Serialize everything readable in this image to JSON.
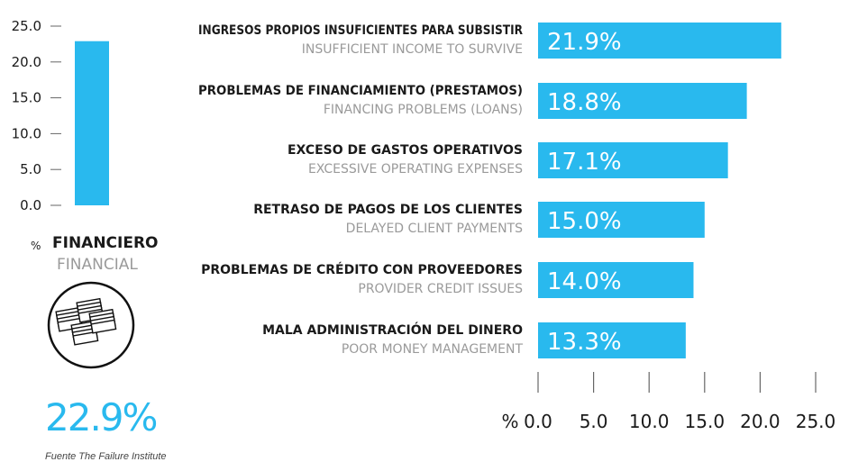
{
  "colors": {
    "bar": "#29b9ee",
    "text": "#1a1a1a",
    "subtext": "#9a9a9a"
  },
  "left_panel": {
    "percent_symbol": "%",
    "category_es": "FINANCIERO",
    "category_en": "FINANCIAL",
    "icon": "money-stack-icon",
    "big_value": "22.9%"
  },
  "source": "Fuente The Failure Institute",
  "chart_data": [
    {
      "type": "bar",
      "orientation": "vertical",
      "categories": [
        "FINANCIERO"
      ],
      "values": [
        22.9
      ],
      "ylim": [
        0,
        25
      ],
      "yticks": [
        "0.0",
        "5.0",
        "10.0",
        "15.0",
        "20.0",
        "25.0"
      ]
    },
    {
      "type": "bar",
      "orientation": "horizontal",
      "categories": [
        {
          "es": "INGRESOS PROPIOS INSUFICIENTES PARA SUBSISTIR",
          "en": "INSUFFICIENT INCOME TO SURVIVE"
        },
        {
          "es": "PROBLEMAS DE FINANCIAMIENTO (PRESTAMOS)",
          "en": "FINANCING PROBLEMS (LOANS)"
        },
        {
          "es": "EXCESO DE GASTOS OPERATIVOS",
          "en": "EXCESSIVE OPERATING EXPENSES"
        },
        {
          "es": "RETRASO DE PAGOS DE LOS CLIENTES",
          "en": "DELAYED CLIENT PAYMENTS"
        },
        {
          "es": "PROBLEMAS DE CRÉDITO CON PROVEEDORES",
          "en": "PROVIDER CREDIT ISSUES"
        },
        {
          "es": "MALA ADMINISTRACIÓN DEL DINERO",
          "en": "POOR MONEY MANAGEMENT"
        }
      ],
      "values": [
        21.9,
        18.8,
        17.1,
        15.0,
        14.0,
        13.3
      ],
      "value_labels": [
        "21.9%",
        "18.8%",
        "17.1%",
        "15.0%",
        "14.0%",
        "13.3%"
      ],
      "xlim": [
        0,
        25
      ],
      "xaxis_unit": "%",
      "xticks": [
        "0.0",
        "5.0",
        "10.0",
        "15.0",
        "20.0",
        "25.0"
      ]
    }
  ]
}
